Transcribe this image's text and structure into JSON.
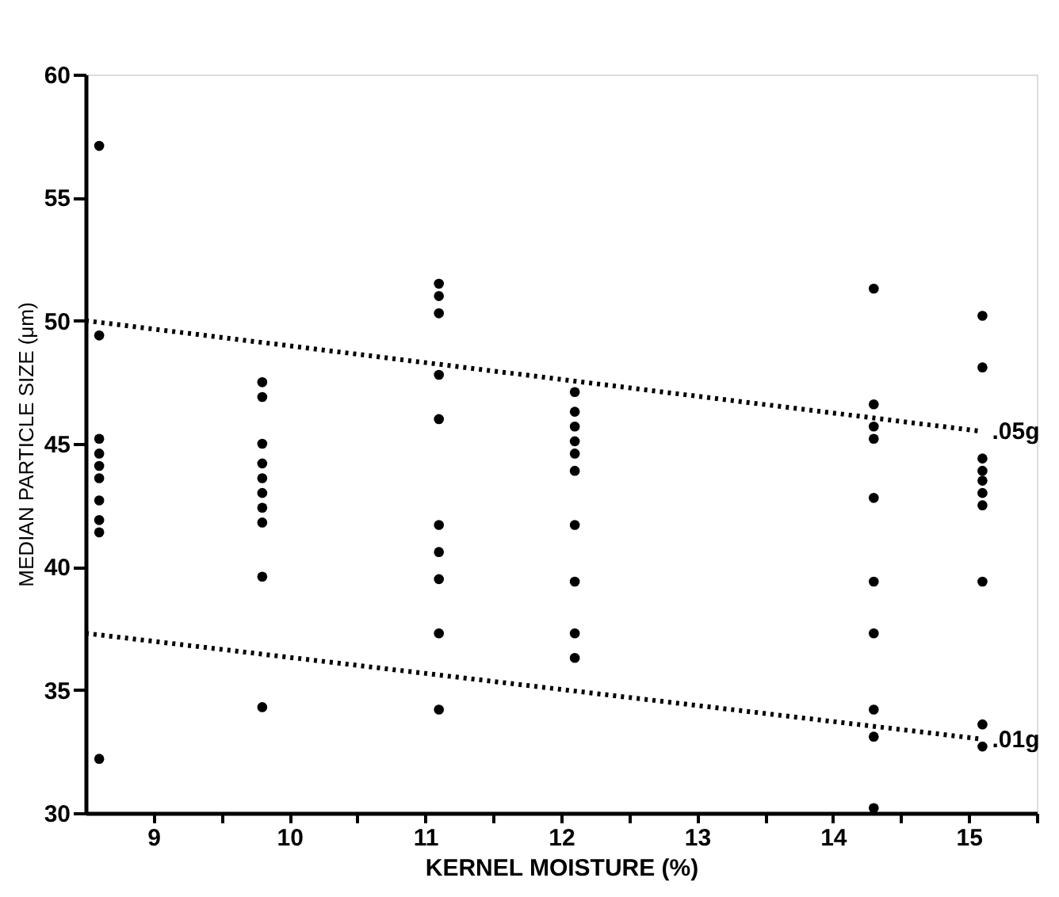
{
  "chart_data": {
    "type": "scatter",
    "xlabel": "KERNEL MOISTURE (%)",
    "ylabel": "MEDIAN PARTICLE SIZE (μm)",
    "xlim": [
      8.5,
      15.5
    ],
    "ylim": [
      30,
      60
    ],
    "xticks": [
      9,
      {
        "value": 9.5,
        "label": null
      },
      10,
      {
        "value": 10.5,
        "label": null
      },
      11,
      {
        "value": 11.5,
        "label": null
      },
      12,
      {
        "value": 12.5,
        "label": null
      },
      13,
      {
        "value": 13.5,
        "label": null
      },
      14,
      {
        "value": 14.5,
        "label": null
      },
      15,
      {
        "value": 15.5,
        "label": null
      }
    ],
    "yticks": [
      30,
      35,
      40,
      45,
      50,
      55,
      60
    ],
    "grid": false,
    "legend": false,
    "series": [
      {
        "color": "#000000",
        "marker": "circle",
        "x": [
          8.6,
          8.6,
          8.6,
          8.6,
          8.6,
          8.6,
          8.6,
          8.6,
          8.6,
          8.6,
          9.8,
          9.8,
          9.8,
          9.8,
          9.8,
          9.8,
          9.8,
          9.8,
          9.8,
          9.8,
          11.1,
          11.1,
          11.1,
          11.1,
          11.1,
          11.1,
          11.1,
          11.1,
          11.1,
          11.1,
          12.1,
          12.1,
          12.1,
          12.1,
          12.1,
          12.1,
          12.1,
          12.1,
          12.1,
          12.1,
          14.3,
          14.3,
          14.3,
          14.3,
          14.3,
          14.3,
          14.3,
          14.3,
          14.3,
          14.3,
          15.1,
          15.1,
          15.1,
          15.1,
          15.1,
          15.1,
          15.1,
          15.1,
          15.1,
          15.1
        ],
        "values": [
          57.1,
          49.4,
          45.2,
          44.6,
          44.1,
          43.6,
          42.7,
          41.9,
          41.4,
          32.2,
          47.5,
          46.9,
          45.0,
          44.2,
          43.6,
          43.0,
          42.4,
          41.8,
          39.6,
          34.3,
          51.5,
          51.0,
          50.3,
          47.8,
          46.0,
          41.7,
          40.6,
          39.5,
          37.3,
          34.2,
          47.1,
          46.3,
          45.7,
          45.1,
          44.6,
          43.9,
          41.7,
          39.4,
          37.3,
          36.3,
          51.3,
          46.6,
          45.7,
          45.2,
          42.8,
          39.4,
          37.3,
          34.2,
          33.1,
          30.2,
          50.2,
          48.1,
          44.4,
          43.9,
          43.5,
          43.0,
          42.5,
          39.4,
          33.6,
          32.7
        ]
      },
      {
        "type": "line",
        "name": ".05g",
        "color": "#000000",
        "line_style": "dotted",
        "x": [
          8.5,
          15.1
        ],
        "values": [
          50.0,
          45.5
        ]
      },
      {
        "type": "line",
        "name": ".01g",
        "color": "#000000",
        "line_style": "dotted",
        "x": [
          8.5,
          15.1
        ],
        "values": [
          37.3,
          33.0
        ]
      }
    ]
  }
}
